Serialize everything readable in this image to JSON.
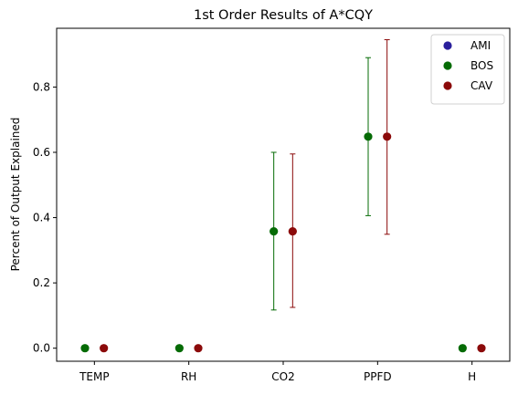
{
  "chart_data": {
    "type": "scatter",
    "title": "1st Order Results of A*CQY",
    "xlabel": "",
    "ylabel": "Percent of Output Explained",
    "categories": [
      "TEMP",
      "RH",
      "CO2",
      "PPFD",
      "H"
    ],
    "ylim": [
      -0.04,
      0.98
    ],
    "yticks": [
      0.0,
      0.2,
      0.4,
      0.6,
      0.8
    ],
    "ytick_labels": [
      "0.0",
      "0.2",
      "0.4",
      "0.6",
      "0.8"
    ],
    "grid": false,
    "legend_position": "top-right",
    "series": [
      {
        "name": "AMI",
        "color": "#2a1f9c",
        "offset": 0.0,
        "values": [
          null,
          null,
          null,
          null,
          null
        ],
        "err_low": [
          null,
          null,
          null,
          null,
          null
        ],
        "err_high": [
          null,
          null,
          null,
          null,
          null
        ]
      },
      {
        "name": "BOS",
        "color": "#056b05",
        "offset": -0.1,
        "values": [
          0.0,
          0.0,
          0.358,
          0.648,
          0.0
        ],
        "err_low": [
          0.0,
          0.0,
          0.117,
          0.406,
          0.0
        ],
        "err_high": [
          0.0,
          0.0,
          0.6,
          0.89,
          0.0
        ]
      },
      {
        "name": "CAV",
        "color": "#8b0a0a",
        "offset": 0.1,
        "values": [
          0.0,
          0.0,
          0.358,
          0.648,
          0.0
        ],
        "err_low": [
          0.0,
          0.0,
          0.125,
          0.349,
          0.0
        ],
        "err_high": [
          0.0,
          0.0,
          0.595,
          0.945,
          0.0
        ]
      }
    ]
  }
}
